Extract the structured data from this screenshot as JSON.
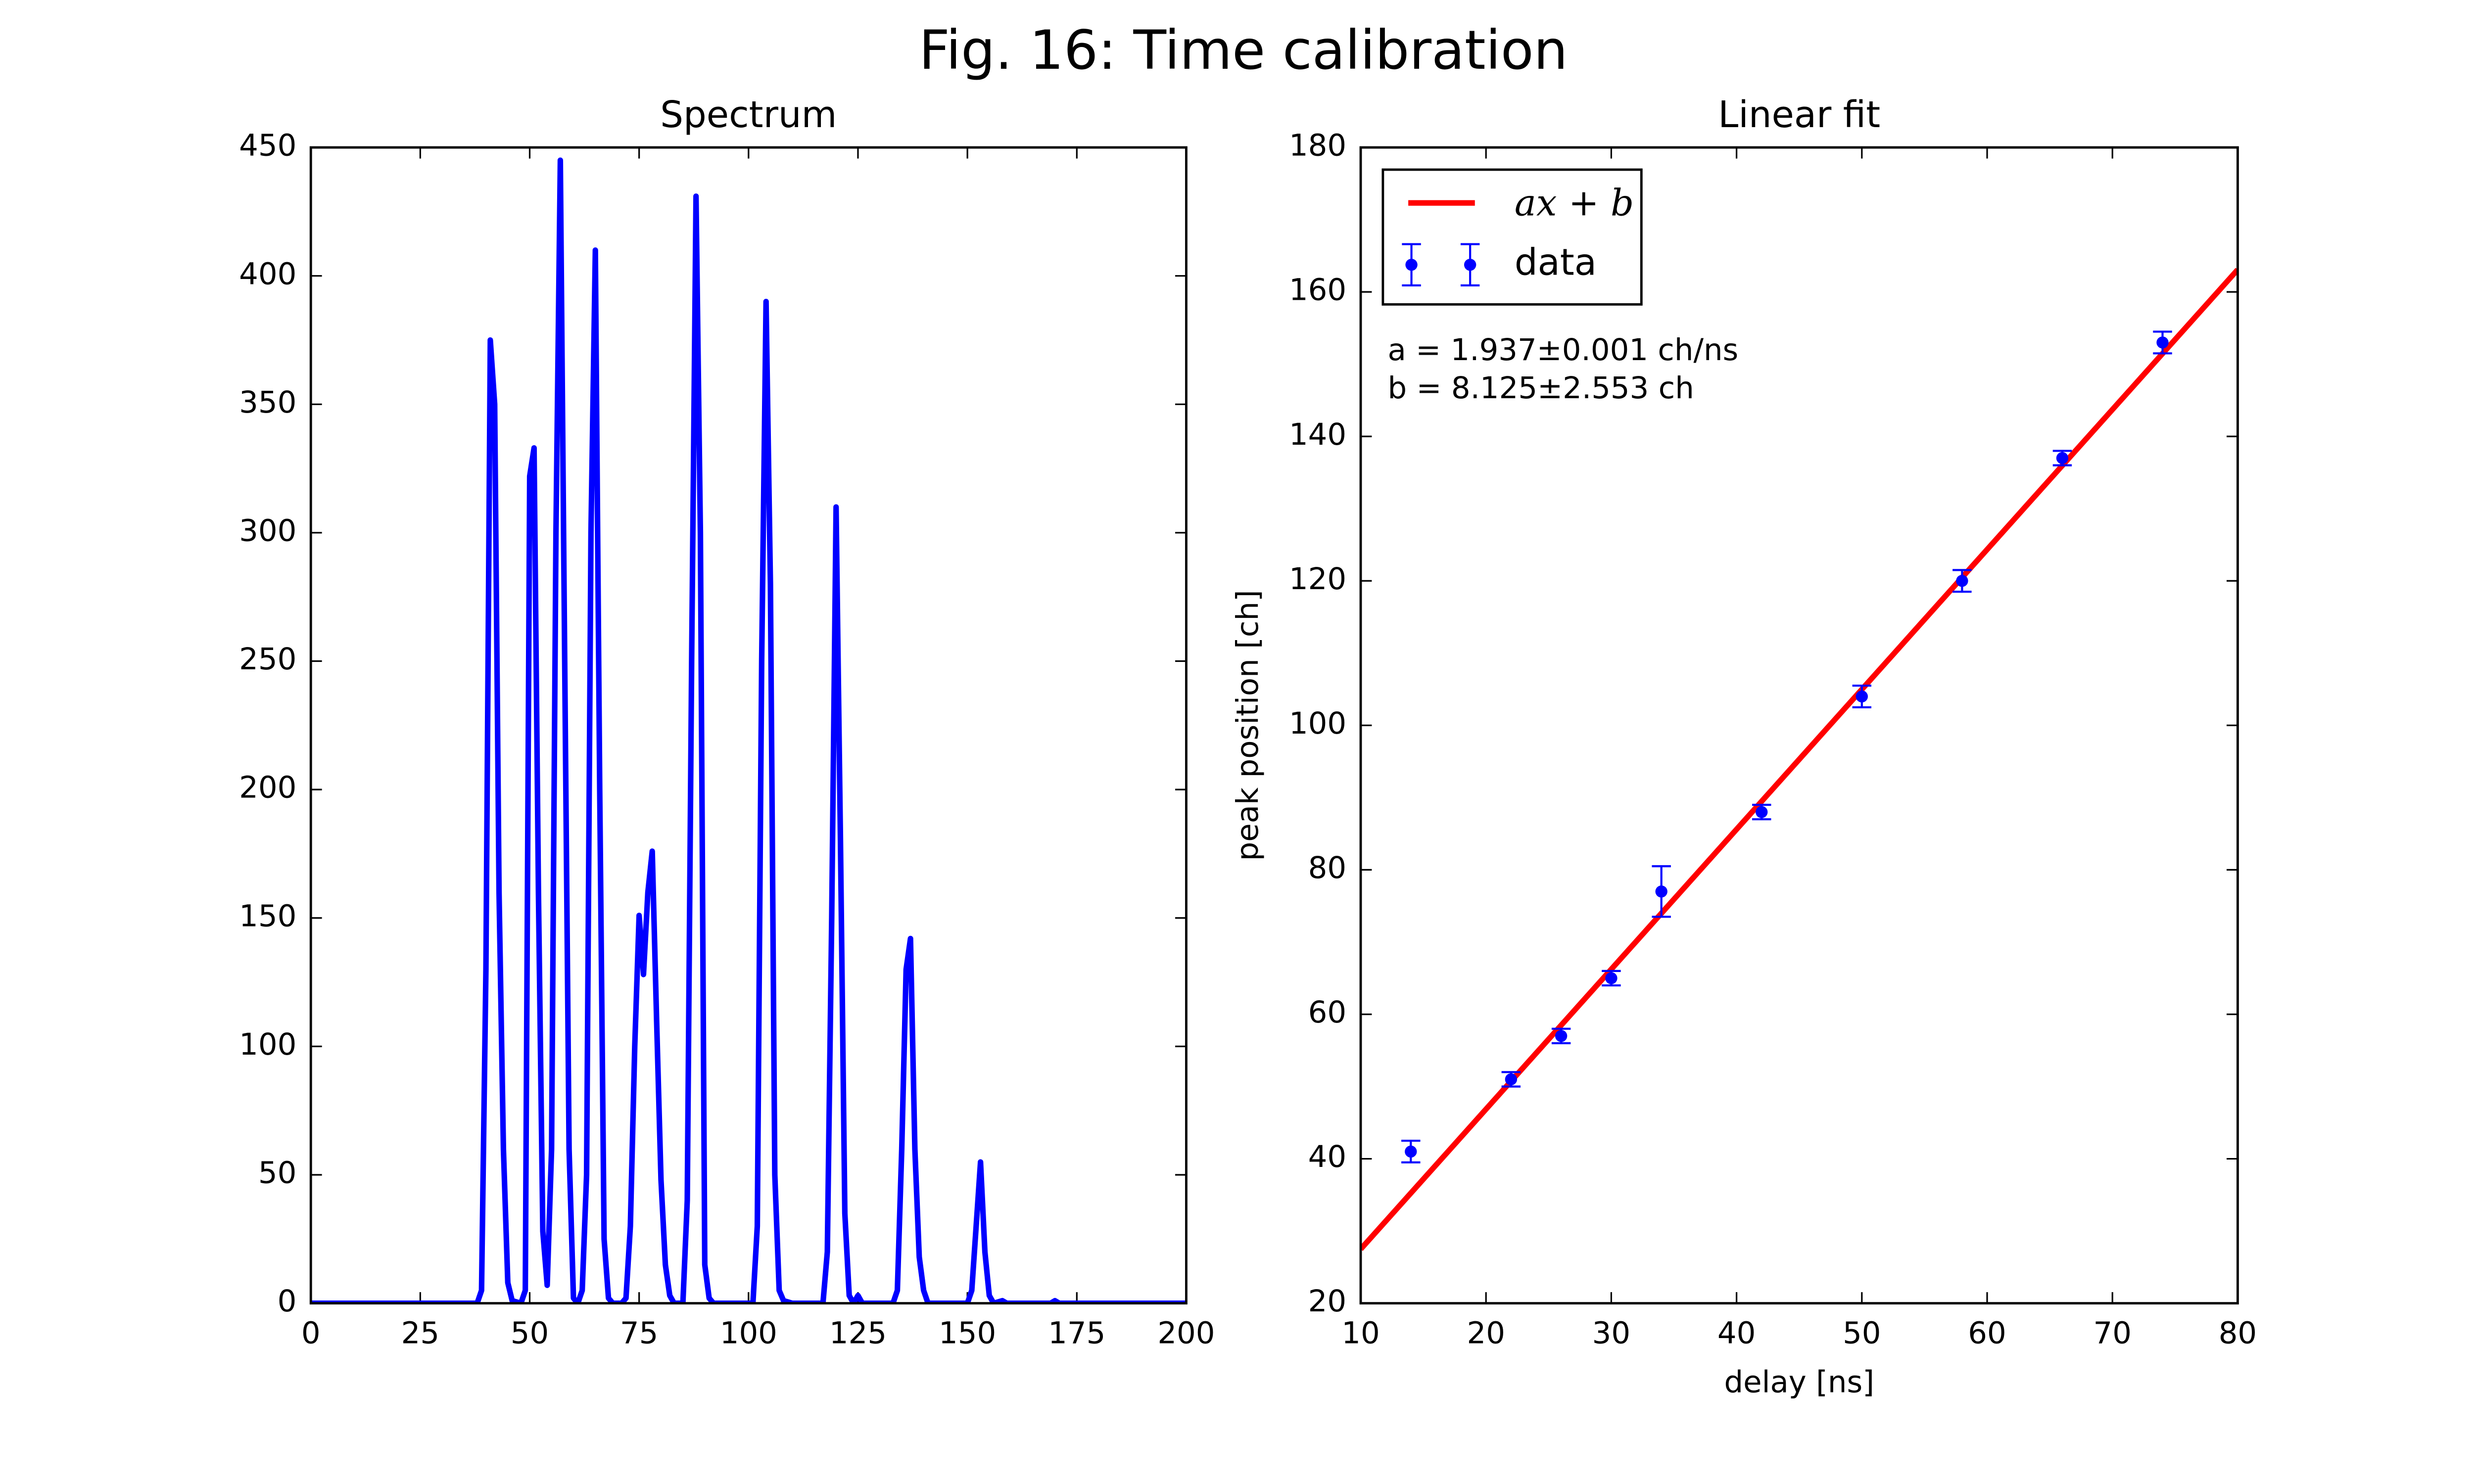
{
  "title": "Fig. 16: Time calibration",
  "chart_data": [
    {
      "type": "line",
      "title": "Spectrum",
      "color": "#0000ff",
      "x": [
        0,
        38,
        39,
        40,
        41,
        42,
        43,
        44,
        45,
        46,
        48,
        49,
        50,
        51,
        52,
        53,
        54,
        55,
        56,
        57,
        58,
        59,
        60,
        61,
        62,
        63,
        64,
        65,
        66,
        67,
        68,
        69,
        71,
        72,
        73,
        74,
        75,
        76,
        77,
        78,
        79,
        80,
        81,
        82,
        83,
        85,
        86,
        87,
        88,
        89,
        90,
        91,
        92,
        101,
        102,
        103,
        104,
        105,
        106,
        107,
        108,
        110,
        117,
        118,
        119,
        120,
        121,
        122,
        123,
        124,
        125,
        126,
        133,
        134,
        135,
        136,
        137,
        138,
        139,
        140,
        141,
        150,
        151,
        152,
        153,
        154,
        155,
        156,
        158,
        159,
        169,
        170,
        171,
        200
      ],
      "values": [
        0,
        0,
        5,
        130,
        375,
        350,
        160,
        60,
        8,
        1,
        0,
        5,
        322,
        333,
        160,
        28,
        7,
        60,
        300,
        445,
        250,
        60,
        2,
        0,
        5,
        50,
        300,
        410,
        200,
        25,
        2,
        0,
        0,
        2,
        30,
        100,
        151,
        128,
        160,
        176,
        110,
        48,
        15,
        3,
        0,
        0,
        40,
        250,
        431,
        300,
        15,
        2,
        0,
        0,
        30,
        250,
        390,
        280,
        50,
        5,
        1,
        0,
        0,
        20,
        150,
        310,
        180,
        35,
        3,
        0,
        3,
        0,
        0,
        5,
        60,
        130,
        142,
        60,
        18,
        5,
        0,
        0,
        5,
        30,
        55,
        20,
        3,
        0,
        1,
        0,
        0,
        1,
        0,
        0
      ],
      "xlim": [
        0,
        200
      ],
      "xticks": [
        0,
        25,
        50,
        75,
        100,
        125,
        150,
        175,
        200
      ],
      "ylim": [
        0,
        450
      ],
      "yticks": [
        0,
        50,
        100,
        150,
        200,
        250,
        300,
        350,
        400,
        450
      ]
    },
    {
      "type": "scatter",
      "title": "Linear fit",
      "x_label": "delay [ns]",
      "y_label": "peak position [ch]",
      "xlim": [
        10,
        80
      ],
      "xticks": [
        10,
        20,
        30,
        40,
        50,
        60,
        70,
        80
      ],
      "ylim": [
        20,
        180
      ],
      "yticks": [
        20,
        40,
        60,
        80,
        100,
        120,
        140,
        160,
        180
      ],
      "legend": "upper left",
      "annotations": [
        "a = 1.937±0.001 ch/ns",
        "b = 8.125±2.553 ch"
      ],
      "series": [
        {
          "name": "ax + b",
          "color": "#ff0000",
          "kind": "line",
          "x": [
            10,
            80
          ],
          "values": [
            27.495,
            163.085
          ]
        },
        {
          "name": "data",
          "color": "#0000ff",
          "kind": "errorbar",
          "x": [
            14,
            22,
            26,
            30,
            34,
            42,
            50,
            58,
            66,
            74
          ],
          "values": [
            41,
            51,
            57,
            65,
            77,
            88,
            104,
            120,
            137,
            153
          ],
          "errors": [
            1.5,
            1,
            1,
            1,
            3.5,
            1,
            1.5,
            1.5,
            1,
            1.5
          ]
        }
      ]
    }
  ]
}
